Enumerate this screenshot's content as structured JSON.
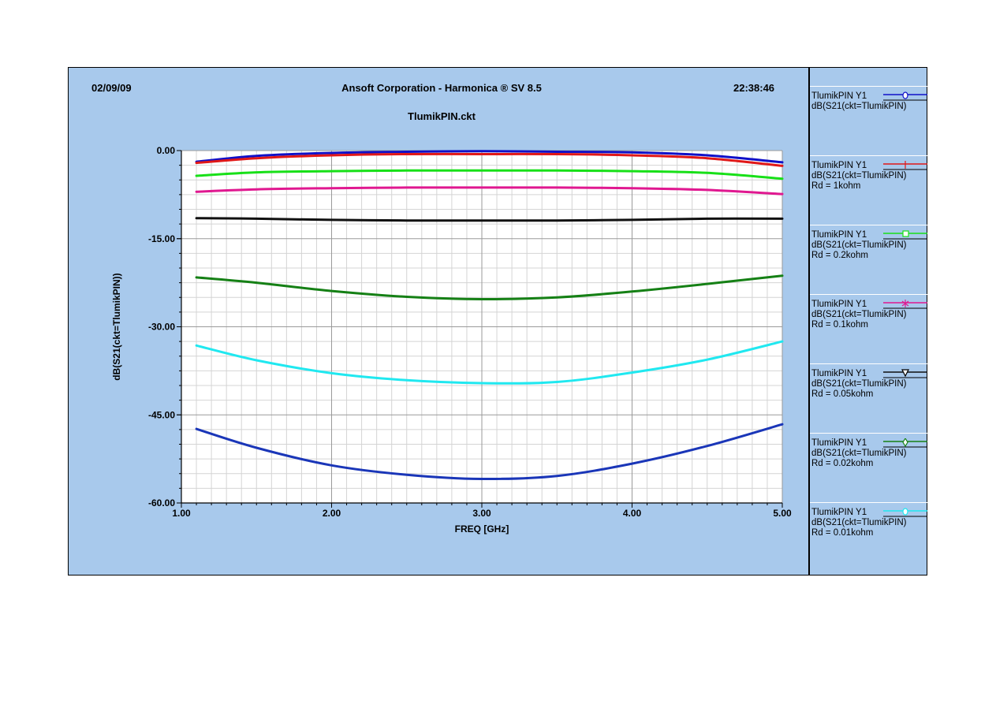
{
  "header": {
    "date": "02/09/09",
    "title": "Ansoft Corporation - Harmonica ® SV 8.5",
    "time": "22:38:46"
  },
  "chart_data": {
    "type": "line",
    "title": "TlumikPIN.ckt",
    "xlabel": "FREQ [GHz]",
    "ylabel": "dB(S21(ckt=TlumikPIN))",
    "xlim": [
      1.0,
      5.0
    ],
    "ylim": [
      -60.0,
      0.0
    ],
    "x_ticks": [
      1.0,
      2.0,
      3.0,
      4.0,
      5.0
    ],
    "x_tick_labels": [
      "1.00",
      "2.00",
      "3.00",
      "4.00",
      "5.00"
    ],
    "y_ticks": [
      0.0,
      -15.0,
      -30.0,
      -45.0,
      -60.0
    ],
    "y_tick_labels": [
      "0.00",
      "-15.00",
      "-30.00",
      "-45.00",
      "-60.00"
    ],
    "grid": true,
    "legend_position": "right",
    "x": [
      1.1,
      1.5,
      2.0,
      2.5,
      3.0,
      3.5,
      4.0,
      4.5,
      5.0
    ],
    "series": [
      {
        "name": "TlumikPIN  Y1",
        "label": "dB(S21(ckt=TlumikPIN)",
        "rd": "",
        "marker": "circle",
        "color": "#1010c8",
        "values": [
          -1.9,
          -0.9,
          -0.4,
          -0.2,
          -0.1,
          -0.2,
          -0.3,
          -0.8,
          -2.0
        ]
      },
      {
        "name": "TlumikPIN  Y1",
        "label": "dB(S21(ckt=TlumikPIN)",
        "rd": "Rd = 1kohm",
        "marker": "plus",
        "color": "#e01818",
        "values": [
          -2.1,
          -1.3,
          -0.8,
          -0.6,
          -0.6,
          -0.6,
          -0.8,
          -1.3,
          -2.6
        ]
      },
      {
        "name": "TlumikPIN  Y1",
        "label": "dB(S21(ckt=TlumikPIN)",
        "rd": "Rd = 0.2kohm",
        "marker": "square",
        "color": "#18e018",
        "values": [
          -4.3,
          -3.7,
          -3.5,
          -3.4,
          -3.4,
          -3.4,
          -3.5,
          -3.8,
          -4.8
        ]
      },
      {
        "name": "TlumikPIN  Y1",
        "label": "dB(S21(ckt=TlumikPIN)",
        "rd": "Rd = 0.1kohm",
        "marker": "asterisk",
        "color": "#e01890",
        "values": [
          -7.0,
          -6.6,
          -6.4,
          -6.3,
          -6.3,
          -6.3,
          -6.4,
          -6.7,
          -7.4
        ]
      },
      {
        "name": "TlumikPIN  Y1",
        "label": "dB(S21(ckt=TlumikPIN)",
        "rd": "Rd = 0.05kohm",
        "marker": "triangle",
        "color": "#101010",
        "values": [
          -11.5,
          -11.6,
          -11.8,
          -11.9,
          -11.9,
          -11.9,
          -11.8,
          -11.6,
          -11.6
        ]
      },
      {
        "name": "TlumikPIN  Y1",
        "label": "dB(S21(ckt=TlumikPIN)",
        "rd": "Rd = 0.02kohm",
        "marker": "diamond",
        "color": "#158015",
        "values": [
          -21.6,
          -22.5,
          -23.9,
          -24.9,
          -25.3,
          -25.0,
          -24.0,
          -22.7,
          -21.3
        ]
      },
      {
        "name": "TlumikPIN  Y1",
        "label": "dB(S21(ckt=TlumikPIN)",
        "rd": "Rd = 0.01kohm",
        "marker": "circle",
        "color": "#20e8f0",
        "values": [
          -33.2,
          -35.7,
          -37.9,
          -39.1,
          -39.6,
          -39.4,
          -37.8,
          -35.6,
          -32.5
        ]
      },
      {
        "name": "",
        "label": "",
        "rd": "",
        "marker": "none",
        "color": "#1a36b8",
        "legend": false,
        "values": [
          -47.4,
          -50.6,
          -53.6,
          -55.2,
          -55.9,
          -55.4,
          -53.3,
          -50.3,
          -46.6
        ]
      }
    ]
  }
}
